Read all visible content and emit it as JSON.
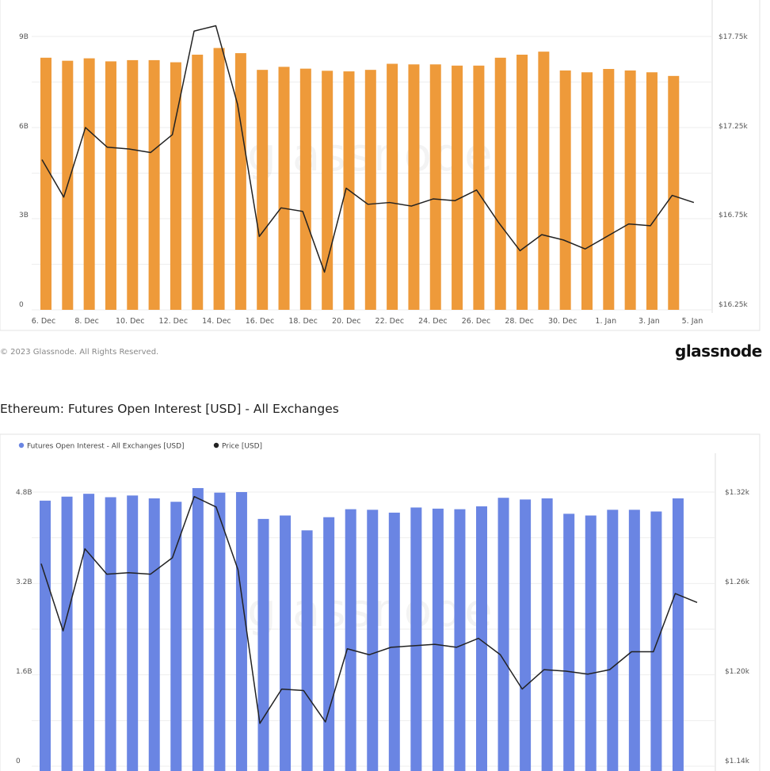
{
  "page": {
    "copyright": "© 2023 Glassnode. All Rights Reserved.",
    "brand": "glassnode",
    "watermark": "glassnode"
  },
  "chart_data": [
    {
      "type": "bar",
      "title": "",
      "x_tick_labels": [
        "6. Dec",
        "8. Dec",
        "10. Dec",
        "12. Dec",
        "14. Dec",
        "16. Dec",
        "18. Dec",
        "20. Dec",
        "22. Dec",
        "24. Dec",
        "26. Dec",
        "28. Dec",
        "30. Dec",
        "1. Jan",
        "3. Jan",
        "5. Jan"
      ],
      "y_left_ticks": [
        "0",
        "3B",
        "6B",
        "9B"
      ],
      "y_right_ticks": [
        "$16.25k",
        "$16.75k",
        "$17.25k",
        "$17.75k"
      ],
      "ylim_left": [
        0,
        10
      ],
      "ylim_right": [
        16.25,
        17.9
      ],
      "bar_color": "#ee9a3a",
      "line_color": "#222222",
      "grid": true,
      "series": [
        {
          "axis": "left",
          "values": [
            8.3,
            8.2,
            8.28,
            8.18,
            8.22,
            8.22,
            8.15,
            8.4,
            8.62,
            8.45,
            7.9,
            8.0,
            7.94,
            7.87,
            7.85,
            7.9,
            8.1,
            8.08,
            8.08,
            8.04,
            8.04,
            8.3,
            8.4,
            8.5,
            7.88,
            7.82,
            7.93,
            7.88,
            7.82,
            7.7
          ]
        },
        {
          "axis": "right",
          "values": [
            17.06,
            16.85,
            17.24,
            17.13,
            17.12,
            17.1,
            17.2,
            17.78,
            17.81,
            17.37,
            16.63,
            16.79,
            16.77,
            16.43,
            16.9,
            16.81,
            16.82,
            16.8,
            16.84,
            16.83,
            16.89,
            16.71,
            16.55,
            16.64,
            16.61,
            16.56,
            16.63,
            16.7,
            16.69,
            16.86,
            16.82
          ]
        }
      ]
    },
    {
      "type": "bar",
      "title": "Ethereum: Futures Open Interest [USD] - All Exchanges",
      "legend": [
        "Futures Open Interest - All Exchanges [USD]",
        "Price [USD]"
      ],
      "legend_position": "top-left",
      "x_tick_labels": [],
      "y_left_ticks": [
        "0",
        "1.6B",
        "3.2B",
        "4.8B"
      ],
      "y_right_ticks": [
        "$1.14k",
        "$1.20k",
        "$1.26k",
        "$1.32k"
      ],
      "ylim_left": [
        0,
        5.2
      ],
      "ylim_right": [
        1.14,
        1.34
      ],
      "bar_color": "#6a85e3",
      "line_color": "#222222",
      "grid": true,
      "series": [
        {
          "name": "Futures Open Interest - All Exchanges [USD]",
          "axis": "left",
          "values": [
            4.65,
            4.72,
            4.77,
            4.71,
            4.74,
            4.69,
            4.63,
            4.87,
            4.79,
            4.8,
            4.33,
            4.39,
            4.13,
            4.36,
            4.5,
            4.49,
            4.44,
            4.53,
            4.51,
            4.5,
            4.55,
            4.7,
            4.67,
            4.69,
            4.42,
            4.39,
            4.49,
            4.49,
            4.46,
            4.69
          ]
        },
        {
          "name": "Price [USD]",
          "axis": "right",
          "values": [
            1.272,
            1.227,
            1.282,
            1.265,
            1.266,
            1.265,
            1.276,
            1.317,
            1.31,
            1.268,
            1.165,
            1.188,
            1.187,
            1.166,
            1.215,
            1.211,
            1.216,
            1.217,
            1.218,
            1.216,
            1.222,
            1.211,
            1.188,
            1.201,
            1.2,
            1.198,
            1.201,
            1.213,
            1.213,
            1.252,
            1.246
          ]
        }
      ]
    }
  ]
}
